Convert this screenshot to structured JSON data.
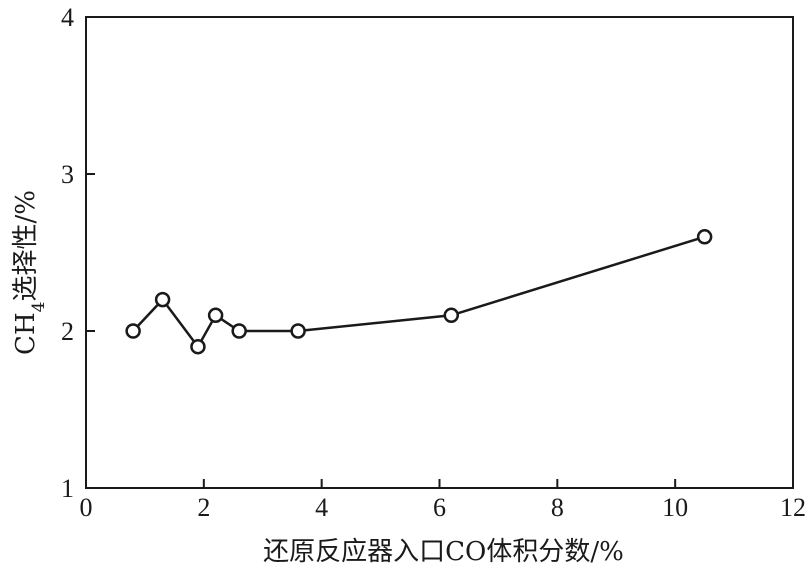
{
  "chart_data": {
    "type": "line",
    "title": "",
    "xlabel": "还原反应器入口CO体积分数/%",
    "ylabel_parts": [
      "CH",
      "4",
      "选择性/%"
    ],
    "xlim": [
      0,
      12
    ],
    "ylim": [
      1,
      4
    ],
    "x_ticks": [
      0,
      2,
      4,
      6,
      8,
      10,
      12
    ],
    "y_ticks": [
      1,
      2,
      3,
      4
    ],
    "grid": false,
    "series": [
      {
        "x": [
          0.8,
          1.3,
          1.9,
          2.2,
          2.6,
          3.6,
          6.2,
          10.5
        ],
        "y": [
          2.0,
          2.2,
          1.9,
          2.1,
          2.0,
          2.0,
          2.1,
          2.6
        ],
        "marker": "open-circle",
        "color": "#1a1a1a"
      }
    ]
  }
}
